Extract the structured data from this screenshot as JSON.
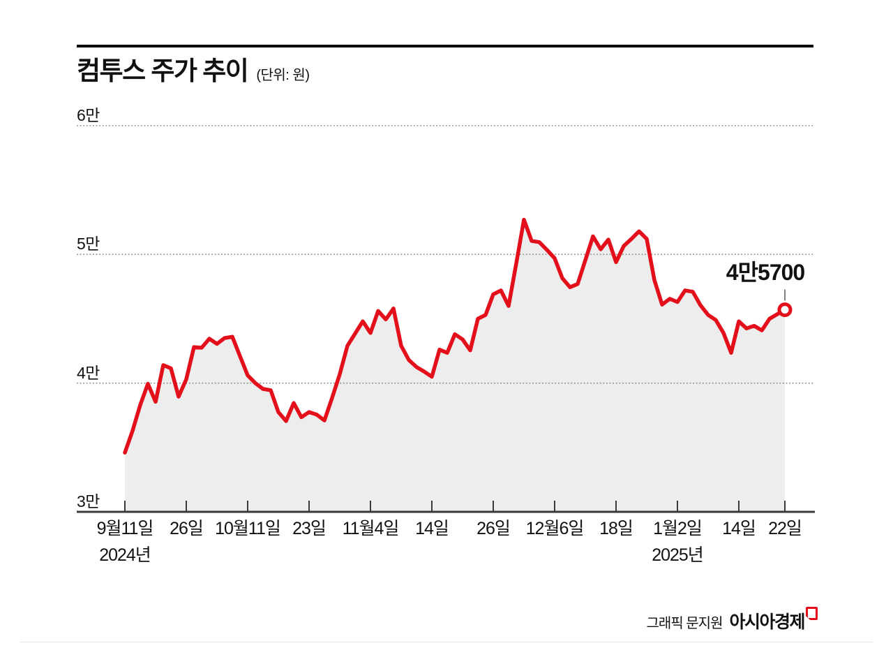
{
  "header": {
    "title": "컴투스 주가 추이",
    "unit": "(단위: 원)"
  },
  "annotation": {
    "last_value_label": "4만5700"
  },
  "credit": {
    "text": "그래픽 문지원",
    "brand": "아시아경제"
  },
  "colors": {
    "line": "#e3101c",
    "area_fill": "#ededed",
    "grid": "#8c8c8c",
    "axis": "#3a3a3a",
    "text": "#111111"
  },
  "chart_data": {
    "type": "line",
    "title": "컴투스 주가 추이",
    "unit": "원",
    "ylim": [
      30000,
      60000
    ],
    "grid": "dotted-horizontal",
    "y_ticks": [
      {
        "value": 60000,
        "label": "6만"
      },
      {
        "value": 50000,
        "label": "5만"
      },
      {
        "value": 40000,
        "label": "4만"
      },
      {
        "value": 30000,
        "label": "3만"
      }
    ],
    "x_ticks": [
      {
        "index": 0,
        "label": "9월11일",
        "sub": "2024년"
      },
      {
        "index": 8,
        "label": "26일"
      },
      {
        "index": 16,
        "label": "10월11일"
      },
      {
        "index": 24,
        "label": "23일"
      },
      {
        "index": 32,
        "label": "11월4일"
      },
      {
        "index": 40,
        "label": "14일"
      },
      {
        "index": 48,
        "label": "26일"
      },
      {
        "index": 56,
        "label": "12월6일"
      },
      {
        "index": 64,
        "label": "18일"
      },
      {
        "index": 72,
        "label": "1월2일",
        "sub": "2025년"
      },
      {
        "index": 80,
        "label": "14일"
      },
      {
        "index": 86,
        "label": "22일"
      }
    ],
    "values": [
      34600,
      36300,
      38300,
      39950,
      38550,
      41400,
      41150,
      38950,
      40300,
      42800,
      42750,
      43450,
      43050,
      43500,
      43600,
      42100,
      40600,
      40000,
      39550,
      39450,
      37750,
      37050,
      38450,
      37350,
      37750,
      37550,
      37100,
      38850,
      40700,
      42900,
      43850,
      44800,
      43900,
      45600,
      44950,
      45800,
      42900,
      41800,
      41250,
      40900,
      40500,
      42600,
      42350,
      43800,
      43400,
      42550,
      45000,
      45300,
      46900,
      47200,
      46000,
      49300,
      52700,
      51050,
      50950,
      50350,
      49700,
      48150,
      47450,
      47700,
      49550,
      51400,
      50400,
      51150,
      49400,
      50650,
      51200,
      51800,
      51200,
      48000,
      46100,
      46550,
      46300,
      47200,
      47100,
      46050,
      45300,
      44900,
      43900,
      42350,
      44800,
      44250,
      44450,
      44100,
      45000,
      45350,
      45700
    ],
    "last_value": 45700
  }
}
